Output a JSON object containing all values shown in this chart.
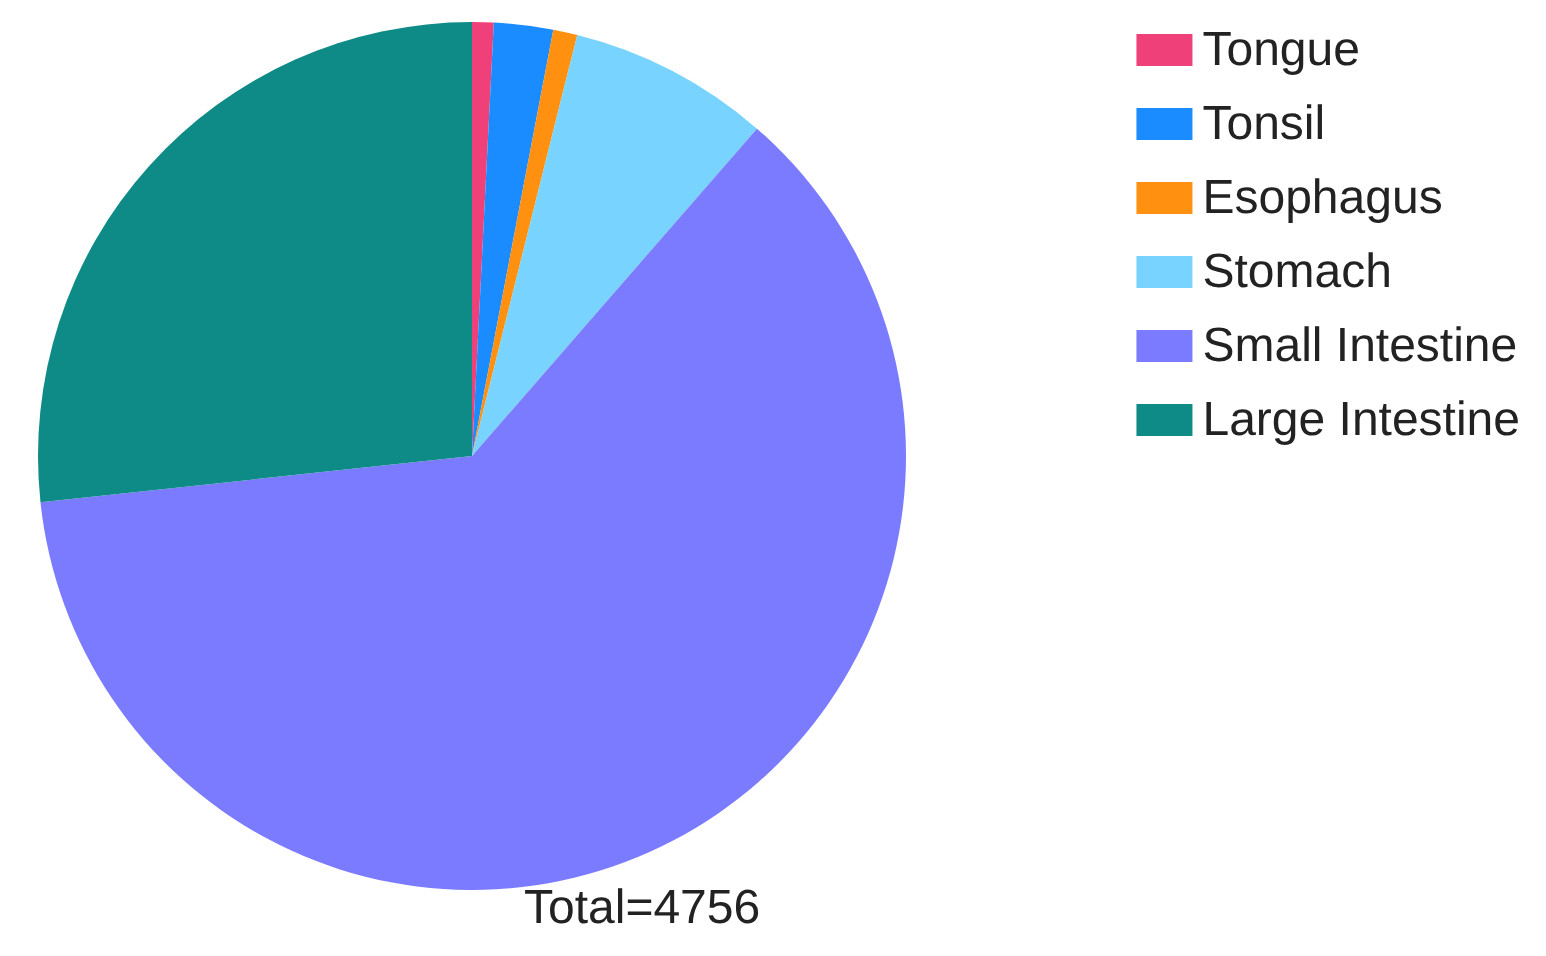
{
  "chart_data": {
    "type": "pie",
    "categories": [
      "Tongue",
      "Tonsil",
      "Esophagus",
      "Stomach",
      "Small Intestine",
      "Large Intestine"
    ],
    "values": [
      0.8,
      2.2,
      0.9,
      7.5,
      61.9,
      26.7
    ],
    "colors": [
      "#f0407a",
      "#1a8cff",
      "#ff9010",
      "#78d4ff",
      "#7b7bff",
      "#0e8a87"
    ],
    "annotations": [
      "Total=4756"
    ],
    "legend": "top right"
  }
}
